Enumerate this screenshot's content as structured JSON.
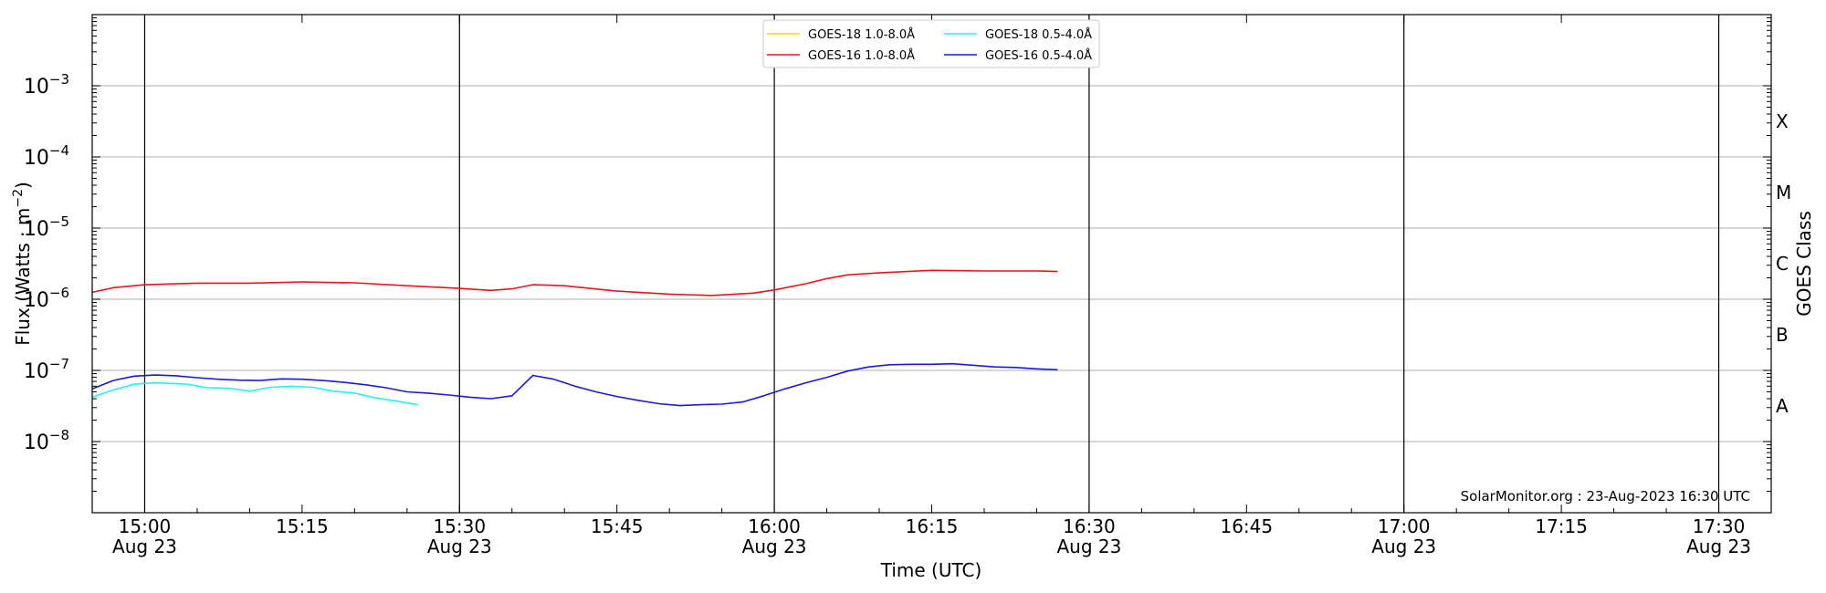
{
  "chart_data": {
    "type": "line",
    "title": "",
    "xlabel": "Time (UTC)",
    "ylabel_main": "Flux (Watts · m",
    "ylabel_sup": "−2",
    "ylabel_close": ")",
    "right_label": "GOES Class",
    "annotation": "SolarMonitor.org : 23-Aug-2023 16:30 UTC",
    "y_scale": "log",
    "ylim": [
      1e-09,
      0.01
    ],
    "y_ticks": [
      {
        "value": 1e-08,
        "base": "10",
        "exp": "−8"
      },
      {
        "value": 1e-07,
        "base": "10",
        "exp": "−7"
      },
      {
        "value": 1e-06,
        "base": "10",
        "exp": "−6"
      },
      {
        "value": 1e-05,
        "base": "10",
        "exp": "−5"
      },
      {
        "value": 0.0001,
        "base": "10",
        "exp": "−4"
      },
      {
        "value": 0.001,
        "base": "10",
        "exp": "−3"
      }
    ],
    "xlim": [
      "14:55",
      "17:35"
    ],
    "x_ticks": [
      {
        "time": "15:00",
        "label": "15:00",
        "date": "Aug 23"
      },
      {
        "time": "15:15",
        "label": "15:15",
        "date": ""
      },
      {
        "time": "15:30",
        "label": "15:30",
        "date": "Aug 23"
      },
      {
        "time": "15:45",
        "label": "15:45",
        "date": ""
      },
      {
        "time": "16:00",
        "label": "16:00",
        "date": "Aug 23"
      },
      {
        "time": "16:15",
        "label": "16:15",
        "date": ""
      },
      {
        "time": "16:30",
        "label": "16:30",
        "date": "Aug 23"
      },
      {
        "time": "16:45",
        "label": "16:45",
        "date": ""
      },
      {
        "time": "17:00",
        "label": "17:00",
        "date": "Aug 23"
      },
      {
        "time": "17:15",
        "label": "17:15",
        "date": ""
      },
      {
        "time": "17:30",
        "label": "17:30",
        "date": "Aug 23"
      }
    ],
    "vertical_lines": [
      "15:00",
      "15:30",
      "16:00",
      "16:30",
      "17:00",
      "17:30"
    ],
    "grid": "horizontal",
    "goes_classes": [
      {
        "label": "A",
        "value": 3.16e-08
      },
      {
        "label": "B",
        "value": 3.16e-07
      },
      {
        "label": "C",
        "value": 3.16e-06
      },
      {
        "label": "M",
        "value": 3.16e-05
      },
      {
        "label": "X",
        "value": 0.000316
      }
    ],
    "legend_position": "top-center",
    "series": [
      {
        "name": "GOES-18 1.0-8.0Å",
        "color": "#ffd700",
        "times": [],
        "values": []
      },
      {
        "name": "GOES-16 1.0-8.0Å",
        "color": "#e8141b",
        "times": [
          "14:55",
          "14:57",
          "15:00",
          "15:05",
          "15:10",
          "15:15",
          "15:20",
          "15:25",
          "15:30",
          "15:33",
          "15:35",
          "15:37",
          "15:40",
          "15:45",
          "15:50",
          "15:54",
          "15:58",
          "16:00",
          "16:03",
          "16:05",
          "16:07",
          "16:10",
          "16:15",
          "16:20",
          "16:25",
          "16:27"
        ],
        "values": [
          1.25e-06,
          1.45e-06,
          1.6e-06,
          1.68e-06,
          1.68e-06,
          1.75e-06,
          1.7e-06,
          1.55e-06,
          1.42e-06,
          1.33e-06,
          1.4e-06,
          1.6e-06,
          1.55e-06,
          1.3e-06,
          1.18e-06,
          1.13e-06,
          1.22e-06,
          1.35e-06,
          1.65e-06,
          1.95e-06,
          2.2e-06,
          2.35e-06,
          2.55e-06,
          2.5e-06,
          2.5e-06,
          2.45e-06
        ]
      },
      {
        "name": "GOES-18 0.5-4.0Å",
        "color": "#22f2f2",
        "times": [
          "14:55",
          "14:57",
          "14:59",
          "15:01",
          "15:04",
          "15:06",
          "15:08",
          "15:10",
          "15:12",
          "15:14",
          "15:16",
          "15:18",
          "15:20",
          "15:22",
          "15:24",
          "15:26"
        ],
        "values": [
          4.2e-08,
          5.3e-08,
          6.4e-08,
          6.7e-08,
          6.4e-08,
          5.7e-08,
          5.6e-08,
          5.1e-08,
          5.8e-08,
          6e-08,
          5.8e-08,
          5.1e-08,
          4.8e-08,
          4.1e-08,
          3.7e-08,
          3.3e-08
        ]
      },
      {
        "name": "GOES-16 0.5-4.0Å",
        "color": "#1a1adc",
        "times": [
          "14:55",
          "14:57",
          "14:59",
          "15:01",
          "15:03",
          "15:05",
          "15:07",
          "15:09",
          "15:11",
          "15:13",
          "15:15",
          "15:17",
          "15:19",
          "15:21",
          "15:23",
          "15:25",
          "15:27",
          "15:29",
          "15:31",
          "15:33",
          "15:35",
          "15:37",
          "15:39",
          "15:41",
          "15:43",
          "15:45",
          "15:47",
          "15:49",
          "15:51",
          "15:53",
          "15:55",
          "15:57",
          "15:59",
          "16:01",
          "16:03",
          "16:05",
          "16:07",
          "16:09",
          "16:11",
          "16:13",
          "16:15",
          "16:17",
          "16:19",
          "16:21",
          "16:23",
          "16:25",
          "16:27"
        ],
        "values": [
          5.5e-08,
          7.2e-08,
          8.3e-08,
          8.6e-08,
          8.4e-08,
          7.9e-08,
          7.5e-08,
          7.3e-08,
          7.2e-08,
          7.6e-08,
          7.5e-08,
          7.2e-08,
          6.8e-08,
          6.3e-08,
          5.7e-08,
          5e-08,
          4.8e-08,
          4.5e-08,
          4.2e-08,
          4e-08,
          4.4e-08,
          8.5e-08,
          7.5e-08,
          6e-08,
          5e-08,
          4.3e-08,
          3.8e-08,
          3.4e-08,
          3.2e-08,
          3.3e-08,
          3.35e-08,
          3.6e-08,
          4.4e-08,
          5.5e-08,
          6.7e-08,
          8e-08,
          9.8e-08,
          1.12e-07,
          1.2e-07,
          1.22e-07,
          1.22e-07,
          1.24e-07,
          1.18e-07,
          1.12e-07,
          1.1e-07,
          1.05e-07,
          1.02e-07
        ]
      }
    ]
  }
}
